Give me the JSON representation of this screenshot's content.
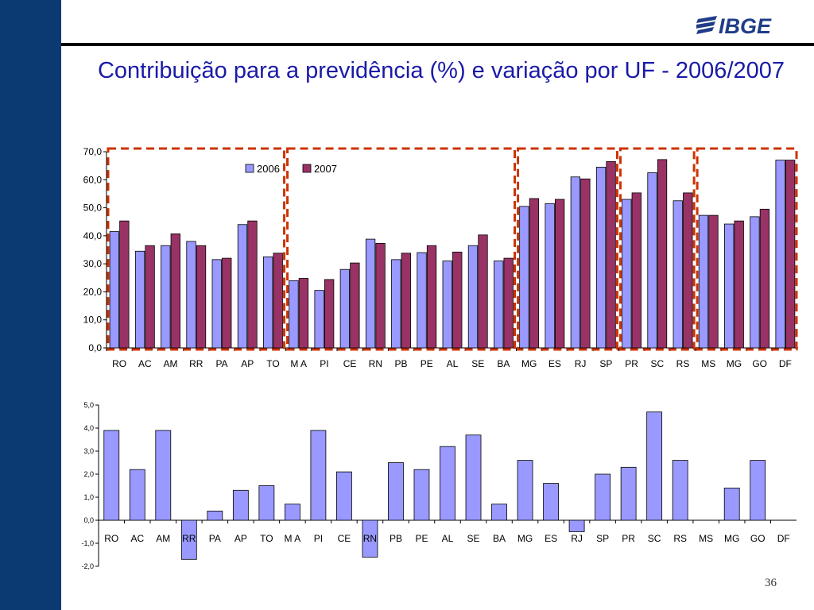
{
  "slide": {
    "title": "Contribuição para a previdência (%) e variação por UF - 2006/2007",
    "logo_text": "IBGE",
    "page_number": "36",
    "colors": {
      "band": "#0b3a73",
      "title": "#1a1aa8",
      "series_2006": "#9999ff",
      "series_2007": "#993366",
      "highlight": "#cc3300"
    }
  },
  "chart_data": [
    {
      "type": "bar",
      "title": "",
      "categories": [
        "RO",
        "AC",
        "AM",
        "RR",
        "PA",
        "AP",
        "TO",
        "MA",
        "PI",
        "CE",
        "RN",
        "PB",
        "PE",
        "AL",
        "SE",
        "BA",
        "MG",
        "ES",
        "RJ",
        "SP",
        "PR",
        "SC",
        "RS",
        "MS",
        "MG",
        "GO",
        "DF"
      ],
      "category_labels": [
        "RO",
        "AC",
        "AM",
        "RR",
        "PA",
        "AP",
        "TO",
        "M A",
        "PI",
        "CE",
        "RN",
        "PB",
        "PE",
        "AL",
        "SE",
        "BA",
        "MG",
        "ES",
        "RJ",
        "SP",
        "PR",
        "SC",
        "RS",
        "MS",
        "MG",
        "GO",
        "DF"
      ],
      "series": [
        {
          "name": "2006",
          "color": "#9999ff",
          "values": [
            41.5,
            34.5,
            36.5,
            38.0,
            31.5,
            44.0,
            32.5,
            24.0,
            20.5,
            28.0,
            38.8,
            31.5,
            34.0,
            31.0,
            36.5,
            31.0,
            50.5,
            51.5,
            61.0,
            64.5,
            53.0,
            62.5,
            52.5,
            47.3,
            44.2,
            46.8,
            67.0
          ]
        },
        {
          "name": "2007",
          "color": "#993366",
          "values": [
            45.3,
            36.5,
            40.7,
            36.5,
            32.0,
            45.3,
            33.8,
            24.8,
            24.4,
            30.3,
            37.3,
            33.8,
            36.5,
            34.2,
            40.3,
            32.0,
            53.3,
            53.0,
            60.3,
            66.5,
            55.3,
            67.2,
            55.3,
            47.3,
            45.3,
            49.5,
            67.0
          ]
        }
      ],
      "ylim": [
        0,
        70
      ],
      "yticks": [
        "0,0",
        "10,0",
        "20,0",
        "30,0",
        "40,0",
        "50,0",
        "60,0",
        "70,0"
      ],
      "legend": "top-left",
      "grid": false,
      "highlight_groups": [
        [
          0,
          6
        ],
        [
          7,
          15
        ],
        [
          16,
          19
        ],
        [
          20,
          22
        ],
        [
          23,
          26
        ]
      ]
    },
    {
      "type": "bar",
      "title": "",
      "categories": [
        "RO",
        "AC",
        "AM",
        "RR",
        "PA",
        "AP",
        "TO",
        "MA",
        "PI",
        "CE",
        "RN",
        "PB",
        "PE",
        "AL",
        "SE",
        "BA",
        "MG",
        "ES",
        "RJ",
        "SP",
        "PR",
        "SC",
        "RS",
        "MS",
        "MG",
        "GO",
        "DF"
      ],
      "category_labels": [
        "RO",
        "AC",
        "AM",
        "RR",
        "PA",
        "AP",
        "TO",
        "M A",
        "PI",
        "CE",
        "RN",
        "PB",
        "PE",
        "AL",
        "SE",
        "BA",
        "MG",
        "ES",
        "RJ",
        "SP",
        "PR",
        "SC",
        "RS",
        "MS",
        "MG",
        "GO",
        "DF"
      ],
      "series": [
        {
          "color": "#9999ff",
          "values": [
            3.9,
            2.2,
            3.9,
            -1.7,
            0.4,
            1.3,
            1.5,
            0.7,
            3.9,
            2.1,
            -1.6,
            2.5,
            2.2,
            3.2,
            3.7,
            0.7,
            2.6,
            1.6,
            -0.5,
            2.0,
            2.3,
            4.7,
            2.6,
            0.0,
            1.4,
            2.6,
            0.0
          ]
        }
      ],
      "ylim": [
        -2,
        5
      ],
      "yticks": [
        "-2,0",
        "-1,0",
        "0,0",
        "1,0",
        "2,0",
        "3,0",
        "4,0",
        "5,0"
      ],
      "grid": false
    }
  ]
}
